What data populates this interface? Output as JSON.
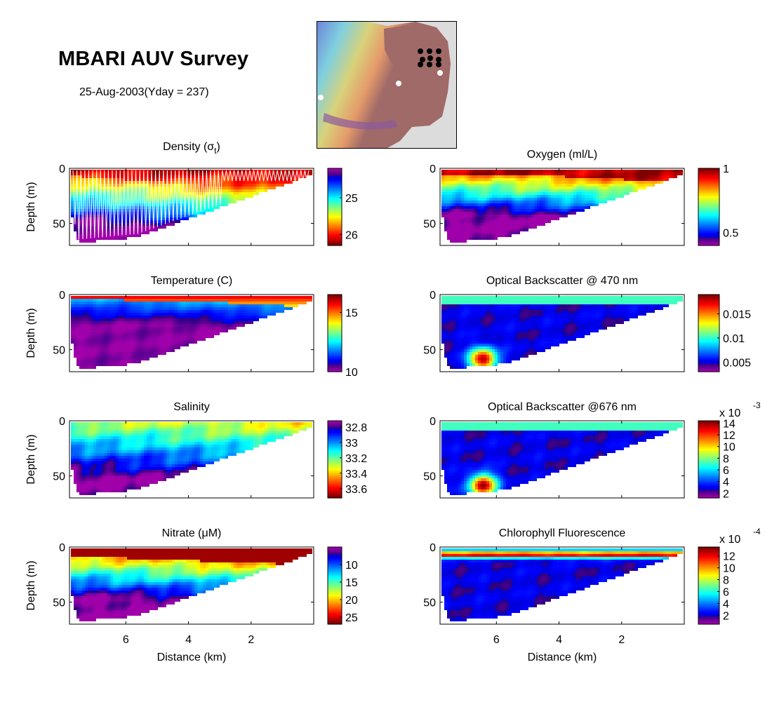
{
  "header": {
    "title": "MBARI AUV Survey",
    "subtitle": "25-Aug-2003(Yday = 237)"
  },
  "map": {
    "label": "Monterey Bay bathymetry inset",
    "survey_markers": "black dots grid (3x3) near shelf",
    "station_markers": 3
  },
  "chart_data": [
    {
      "type": "heatmap",
      "id": "density",
      "title": "Density (σt)",
      "title_main": "Density (",
      "title_sym": "σ",
      "title_sub": "t",
      "title_close": ")",
      "xlabel": "",
      "ylabel": "Depth (m)",
      "xlim": [
        7.8,
        0
      ],
      "ylim": [
        70,
        0
      ],
      "xticks": [
        6,
        4,
        2
      ],
      "yticks": [
        0,
        50
      ],
      "xticklabels_visible": false,
      "colorbar": {
        "ticks": [
          25,
          26
        ],
        "range": [
          24.2,
          26.3
        ],
        "reversed": true,
        "exponent": ""
      },
      "overlay": "white AUV yo-yo track",
      "colormap": "jet-reversed"
    },
    {
      "type": "heatmap",
      "id": "oxygen",
      "title": "Oxygen (ml/L)",
      "xlabel": "",
      "ylabel": "",
      "xlim": [
        7.8,
        0
      ],
      "ylim": [
        70,
        0
      ],
      "xticks": [
        6,
        4,
        2
      ],
      "yticks": [
        0,
        50
      ],
      "xticklabels_visible": false,
      "colorbar": {
        "ticks": [
          1,
          0.5
        ],
        "range": [
          0.4,
          1.0
        ],
        "reversed": false,
        "exponent": ""
      }
    },
    {
      "type": "heatmap",
      "id": "temperature",
      "title": "Temperature (C)",
      "xlabel": "",
      "ylabel": "Depth (m)",
      "xlim": [
        7.8,
        0
      ],
      "ylim": [
        70,
        0
      ],
      "xticks": [
        6,
        4,
        2
      ],
      "yticks": [
        0,
        50
      ],
      "xticklabels_visible": false,
      "colorbar": {
        "ticks": [
          15,
          10
        ],
        "range": [
          10,
          16.5
        ],
        "reversed": false,
        "exponent": ""
      }
    },
    {
      "type": "heatmap",
      "id": "backscatter470",
      "title": "Optical Backscatter @ 470 nm",
      "xlabel": "",
      "ylabel": "",
      "xlim": [
        7.8,
        0
      ],
      "ylim": [
        70,
        0
      ],
      "xticks": [
        6,
        4,
        2
      ],
      "yticks": [
        0,
        50
      ],
      "xticklabels_visible": false,
      "colorbar": {
        "ticks": [
          0.015,
          0.01,
          0.005
        ],
        "ticklabels": [
          "0.015",
          "0.01",
          "0.005"
        ],
        "range": [
          0.003,
          0.019
        ],
        "reversed": false,
        "exponent": ""
      }
    },
    {
      "type": "heatmap",
      "id": "salinity",
      "title": "Salinity",
      "xlabel": "",
      "ylabel": "Depth (m)",
      "xlim": [
        7.8,
        0
      ],
      "ylim": [
        70,
        0
      ],
      "xticks": [
        6,
        4,
        2
      ],
      "yticks": [
        0,
        50
      ],
      "xticklabels_visible": false,
      "colorbar": {
        "ticks": [
          32.8,
          33,
          33.2,
          33.4,
          33.6
        ],
        "ticklabels": [
          "32.8",
          "33",
          "33.2",
          "33.4",
          "33.6"
        ],
        "range": [
          32.72,
          33.72
        ],
        "reversed": true,
        "exponent": ""
      }
    },
    {
      "type": "heatmap",
      "id": "backscatter676",
      "title": "Optical Backscatter @676 nm",
      "xlabel": "",
      "ylabel": "",
      "xlim": [
        7.8,
        0
      ],
      "ylim": [
        70,
        0
      ],
      "xticks": [
        6,
        4,
        2
      ],
      "yticks": [
        0,
        50
      ],
      "xticklabels_visible": false,
      "colorbar": {
        "ticks": [
          14,
          12,
          10,
          8,
          6,
          4,
          2
        ],
        "range": [
          1.2,
          14.4
        ],
        "reversed": false,
        "exponent": "x 10",
        "exponent_power": "-3"
      }
    },
    {
      "type": "heatmap",
      "id": "nitrate",
      "title": "Nitrate (μM)",
      "xlabel": "Distance (km)",
      "ylabel": "Depth (m)",
      "xlim": [
        7.8,
        0
      ],
      "ylim": [
        70,
        0
      ],
      "xticks": [
        6,
        4,
        2
      ],
      "yticks": [
        0,
        50
      ],
      "xticklabels_visible": true,
      "colorbar": {
        "ticks": [
          10,
          15,
          20,
          25
        ],
        "range": [
          5,
          27
        ],
        "reversed": true,
        "exponent": ""
      }
    },
    {
      "type": "heatmap",
      "id": "chlorophyll",
      "title": "Chlorophyll Fluorescence",
      "xlabel": "Distance (km)",
      "ylabel": "",
      "xlim": [
        7.8,
        0
      ],
      "ylim": [
        70,
        0
      ],
      "xticks": [
        6,
        4,
        2
      ],
      "yticks": [
        0,
        50
      ],
      "xticklabels_visible": true,
      "colorbar": {
        "ticks": [
          12,
          10,
          8,
          6,
          4,
          2
        ],
        "range": [
          0.5,
          13.5
        ],
        "reversed": false,
        "exponent": "x 10",
        "exponent_power": "-4"
      }
    }
  ]
}
